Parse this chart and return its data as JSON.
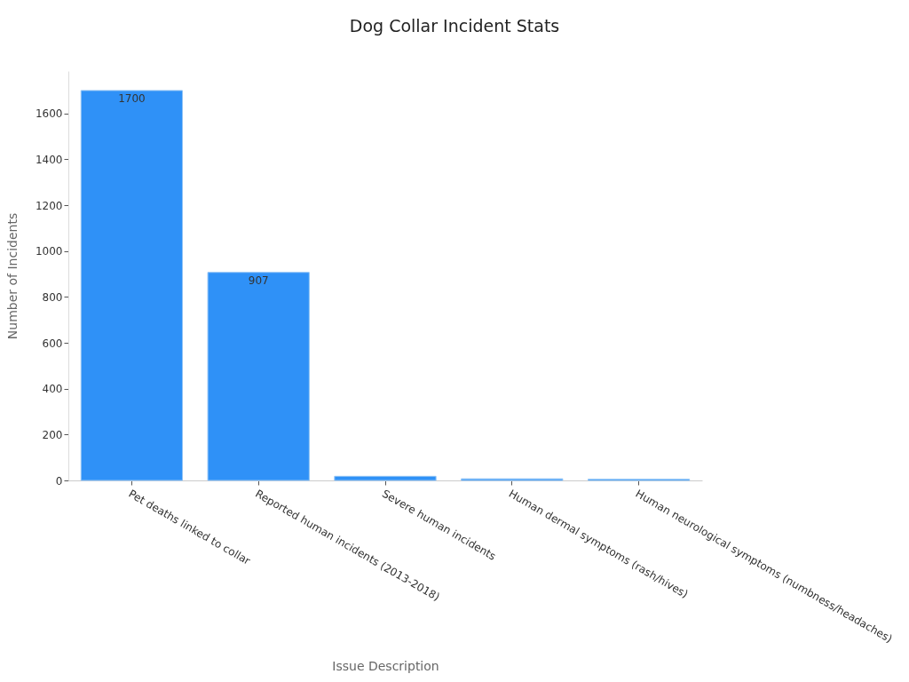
{
  "chart_data": {
    "type": "bar",
    "title": "Dog Collar Incident Stats",
    "xlabel": "Issue Description",
    "ylabel": "Number of Incidents",
    "categories": [
      "Pet deaths linked to collar",
      "Reported human incidents (2013-2018)",
      "Severe human incidents",
      "Human dermal symptoms (rash/hives)",
      "Human neurological symptoms (numbness/headaches)"
    ],
    "values": [
      1700,
      907,
      18,
      7,
      5
    ],
    "value_labels": [
      "1700",
      "907",
      null,
      null,
      null
    ],
    "color": "#2f91f7",
    "ylim": [
      0,
      1785
    ],
    "yticks": [
      0,
      200,
      400,
      600,
      800,
      1000,
      1200,
      1400,
      1600
    ],
    "grid": false
  }
}
